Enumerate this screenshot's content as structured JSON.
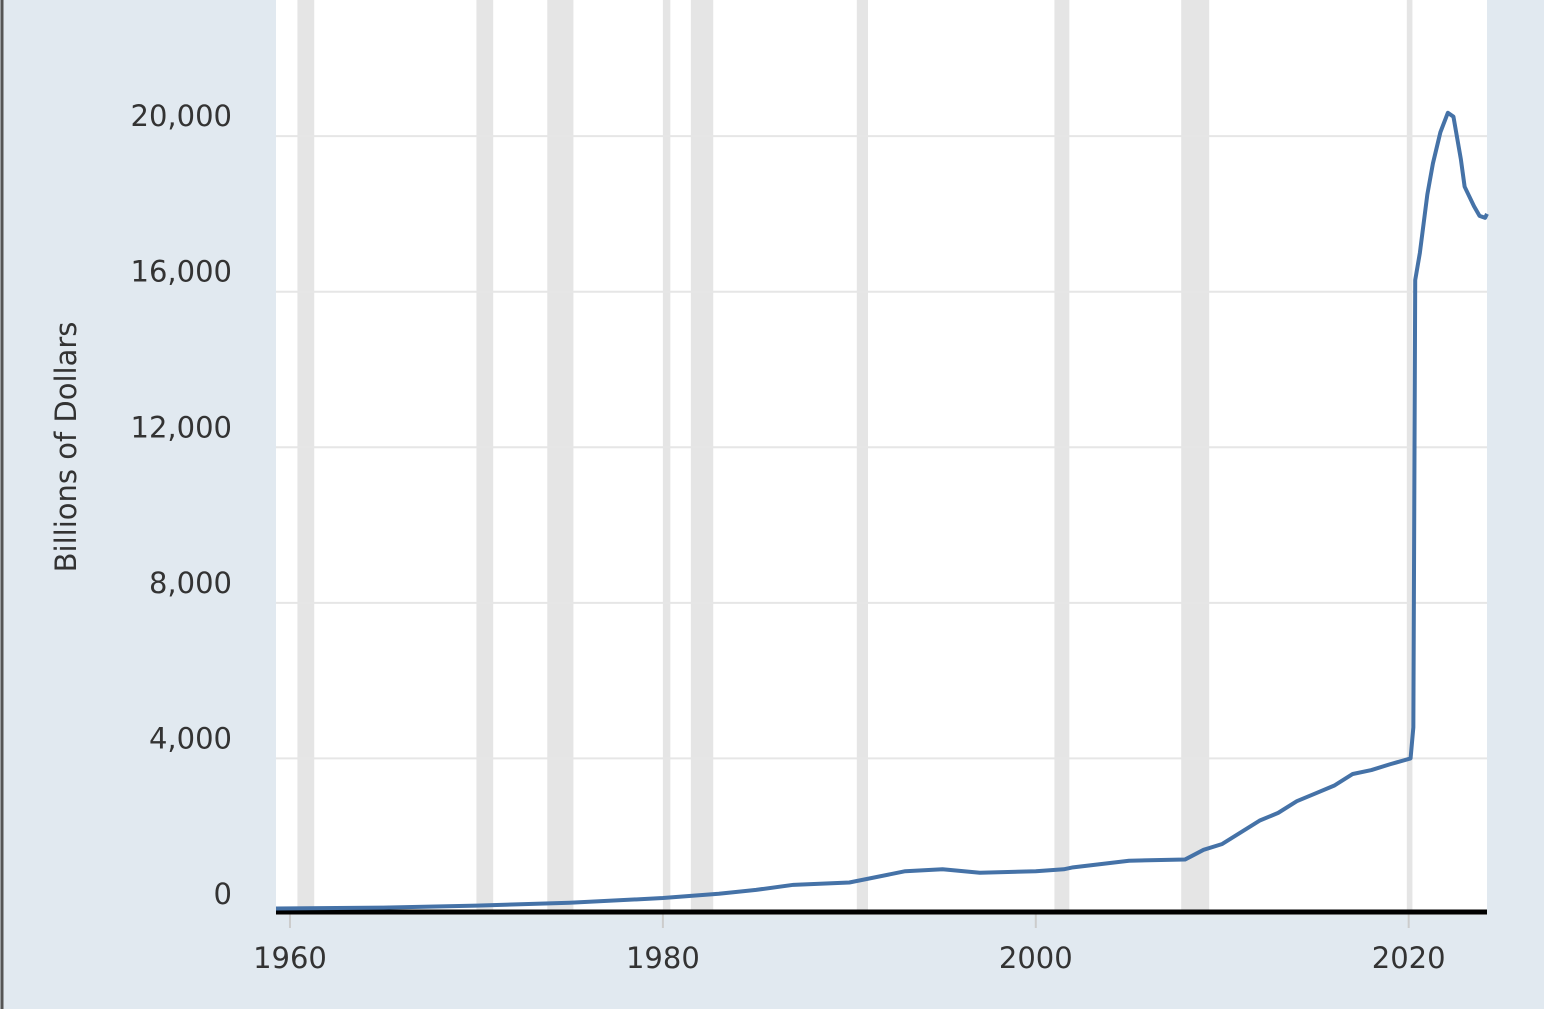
{
  "chart_data": {
    "type": "line",
    "y_label": "Billions of Dollars",
    "x": [
      1959.25,
      1965,
      1970,
      1975,
      1980,
      1983,
      1985,
      1987,
      1990,
      1993,
      1995,
      1997,
      2000,
      2001.5,
      2002,
      2005,
      2008,
      2009,
      2010,
      2011,
      2012,
      2013,
      2014,
      2015,
      2016,
      2017,
      2018,
      2019,
      2020.1,
      2020.25,
      2020.35,
      2020.6,
      2021,
      2021.3,
      2021.7,
      2022.1,
      2022.4,
      2022.8,
      2023,
      2023.5,
      2023.8,
      2024.1,
      2024.2
    ],
    "values": [
      140,
      165,
      215,
      290,
      410,
      520,
      620,
      750,
      810,
      1100,
      1150,
      1060,
      1100,
      1150,
      1200,
      1370,
      1400,
      1650,
      1800,
      2100,
      2400,
      2600,
      2900,
      3100,
      3300,
      3600,
      3700,
      3850,
      4000,
      4800,
      16300,
      17000,
      18500,
      19300,
      20100,
      20600,
      20500,
      19400,
      18700,
      18200,
      17950,
      17900,
      18000
    ],
    "color": "#4572a7",
    "recessions": [
      [
        1960.4,
        1961.3
      ],
      [
        1970.0,
        1970.9
      ],
      [
        1973.8,
        1975.2
      ],
      [
        1980.0,
        1980.4
      ],
      [
        1981.5,
        1982.7
      ],
      [
        1990.4,
        1991.0
      ],
      [
        2001.0,
        2001.8
      ],
      [
        2007.8,
        2009.3
      ],
      [
        2019.9,
        2020.2
      ]
    ],
    "xlim": [
      1959.25,
      2024.2
    ],
    "xticks": [
      1960,
      1980,
      2000,
      2020
    ],
    "ylim": [
      0,
      23500
    ],
    "yticks": [
      0,
      {
        "value": 4000,
        "label": "4,000"
      },
      {
        "value": 8000,
        "label": "8,000"
      },
      {
        "value": 12000,
        "label": "12,000"
      },
      {
        "value": 16000,
        "label": "16,000"
      },
      {
        "value": 20000,
        "label": "20,000"
      }
    ],
    "grid": true
  }
}
